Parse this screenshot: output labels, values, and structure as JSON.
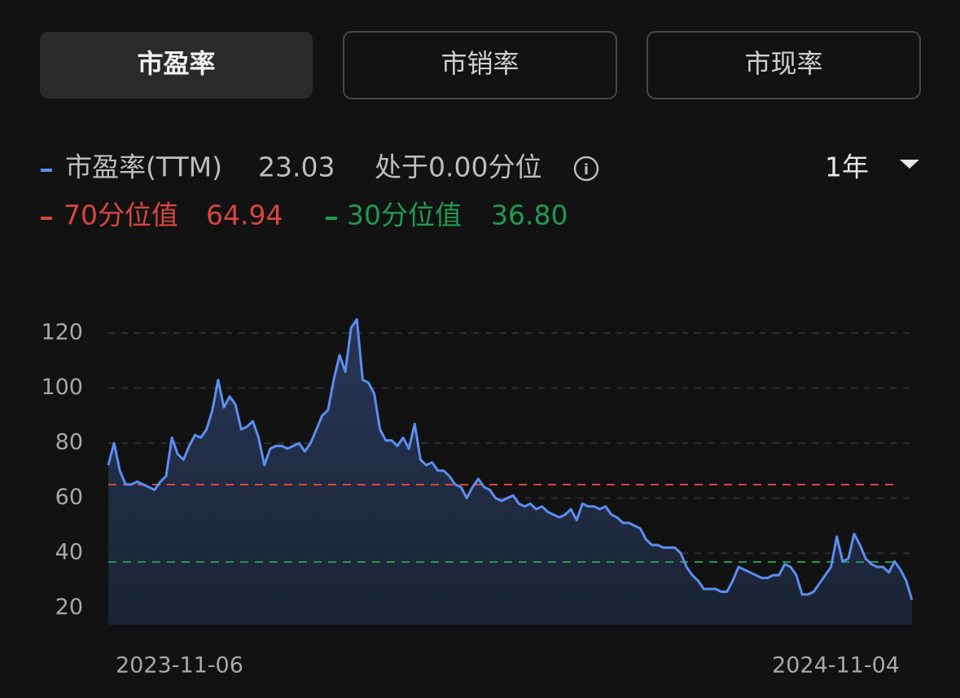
{
  "tabs": [
    {
      "label": "市盈率",
      "active": true
    },
    {
      "label": "市销率",
      "active": false
    },
    {
      "label": "市现率",
      "active": false
    }
  ],
  "period": "1年",
  "chart_data": {
    "type": "area",
    "status": "处于0.00分位",
    "categories": [
      "2023-11-06",
      null,
      null,
      null,
      null,
      null,
      null,
      null,
      null,
      null,
      null,
      null,
      null,
      null,
      null,
      null,
      null,
      null,
      null,
      null,
      null,
      null,
      null,
      null,
      null,
      null,
      null,
      null,
      null,
      null,
      null,
      null,
      null,
      null,
      null,
      null,
      null,
      null,
      null,
      null,
      null,
      null,
      null,
      null,
      null,
      null,
      null,
      null,
      null,
      null,
      null,
      null,
      null,
      null,
      null,
      null,
      null,
      null,
      null,
      null,
      null,
      null,
      null,
      null,
      null,
      null,
      null,
      null,
      null,
      null,
      null,
      null,
      null,
      null,
      null,
      null,
      null,
      null,
      null,
      null,
      null,
      null,
      null,
      null,
      null,
      null,
      null,
      null,
      null,
      null,
      null,
      null,
      null,
      null,
      null,
      null,
      null,
      null,
      null,
      null,
      null,
      null,
      null,
      null,
      null,
      null,
      null,
      null,
      null,
      null,
      null,
      null,
      null,
      null,
      null,
      null,
      null,
      null,
      null,
      null,
      null,
      null,
      null,
      null,
      null,
      null,
      null,
      null,
      null,
      null,
      null,
      null,
      null,
      null,
      null,
      null,
      null,
      null,
      null,
      "2024-11-04"
    ],
    "series": [
      {
        "name": "市盈率(TTM)",
        "color": "#5b8ef0",
        "values": [
          72,
          80,
          70,
          65,
          65,
          66,
          65,
          64,
          63,
          66,
          68,
          82,
          76,
          74,
          79,
          83,
          82,
          85,
          92,
          103,
          93,
          97,
          94,
          85,
          86,
          88,
          82,
          72,
          78,
          79,
          79,
          78,
          79,
          80,
          77,
          80,
          85,
          90,
          92,
          103,
          112,
          106,
          122,
          125,
          103,
          102,
          98,
          85,
          81,
          81,
          79,
          82,
          78,
          87,
          74,
          72,
          73,
          70,
          70,
          68,
          65,
          64,
          60,
          64,
          67,
          64,
          63,
          60,
          59,
          60,
          61,
          58,
          57,
          58,
          56,
          57,
          55,
          54,
          53,
          54,
          56,
          52,
          58,
          57,
          57,
          56,
          57,
          54,
          53,
          51,
          51,
          50,
          49,
          45,
          43,
          43,
          42,
          42,
          42,
          40,
          35,
          32,
          30,
          27,
          27,
          27,
          26,
          26,
          30,
          35,
          34,
          33,
          32,
          31,
          31,
          32,
          32,
          36,
          35,
          32,
          25,
          25,
          26,
          29,
          32,
          35,
          46,
          37,
          38,
          47,
          43,
          38,
          36,
          35,
          35,
          33,
          37,
          34,
          30,
          23.03
        ]
      }
    ],
    "reference_lines": [
      {
        "name": "70分位值",
        "value": 64.94,
        "color": "#d8463e"
      },
      {
        "name": "30分位值",
        "value": 36.8,
        "value_label": "36.80",
        "color": "#1f9a52"
      }
    ],
    "ylim": [
      14,
      128
    ],
    "yticks": [
      20,
      40,
      60,
      80,
      100,
      120
    ],
    "grid": true
  }
}
